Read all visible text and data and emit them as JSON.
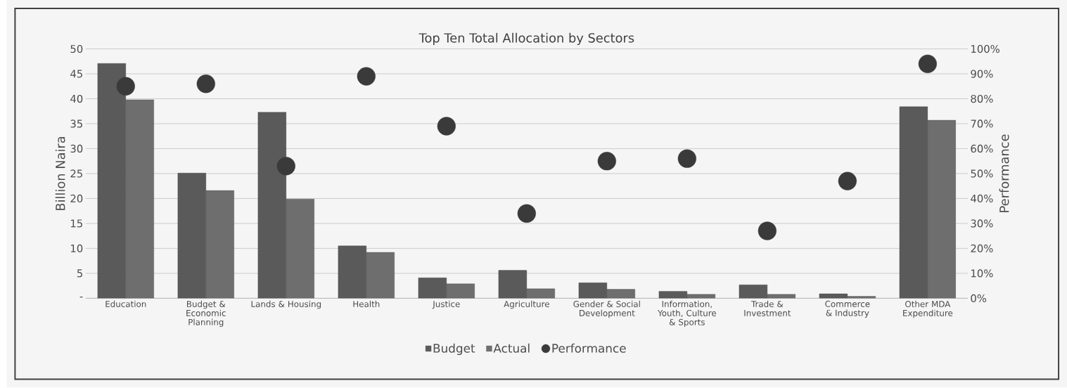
{
  "chart_data": {
    "type": "bar",
    "title": "Top Ten Total Allocation by Sectors",
    "ylabel": "Billion Naira",
    "y2label": "Performance",
    "categories": [
      "Education",
      "Budget & Economic Planning",
      "Lands & Housing",
      "Health",
      "Justice",
      "Agriculture",
      "Gender & Social Development",
      "Information, Youth, Culture & Sports",
      "Trade & Investment",
      "Commerce & Industry",
      "Other MDA Expenditure"
    ],
    "series": [
      {
        "name": "Budget",
        "type": "bar",
        "color": "#5a5a5a",
        "values": [
          47.1,
          25.1,
          37.3,
          10.5,
          4.1,
          5.6,
          3.1,
          1.4,
          2.7,
          0.9,
          38.4
        ]
      },
      {
        "name": "Actual",
        "type": "bar",
        "color": "#6e6e6e",
        "values": [
          39.8,
          21.6,
          19.9,
          9.2,
          2.9,
          1.9,
          1.8,
          0.8,
          0.8,
          0.4,
          35.7
        ]
      },
      {
        "name": "Performance",
        "type": "scatter",
        "axis": "y2",
        "color": "#3a3a3a",
        "values": [
          85,
          86,
          53,
          89,
          69,
          34,
          55,
          56,
          27,
          47,
          94
        ]
      }
    ],
    "ylim": [
      0,
      50
    ],
    "yticks": [
      {
        "value": 0,
        "label": "-"
      },
      5,
      10,
      15,
      20,
      25,
      30,
      35,
      40,
      45,
      50
    ],
    "y2lim": [
      0,
      100
    ],
    "y2ticks": [
      {
        "value": 0,
        "label": "0%"
      },
      {
        "value": 10,
        "label": "10%"
      },
      {
        "value": 20,
        "label": "20%"
      },
      {
        "value": 30,
        "label": "30%"
      },
      {
        "value": 40,
        "label": "40%"
      },
      {
        "value": 50,
        "label": "50%"
      },
      {
        "value": 60,
        "label": "60%"
      },
      {
        "value": 70,
        "label": "70%"
      },
      {
        "value": 80,
        "label": "80%"
      },
      {
        "value": 90,
        "label": "90%"
      },
      {
        "value": 100,
        "label": "100%"
      }
    ],
    "grid": "y",
    "legend": "bottom"
  }
}
